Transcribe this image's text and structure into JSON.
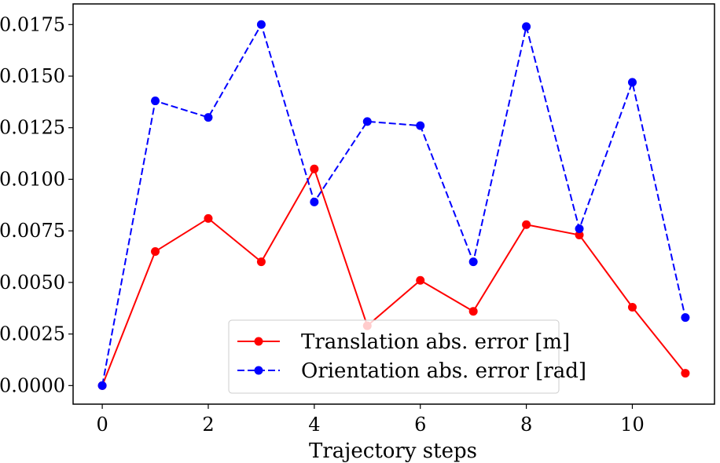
{
  "chart_data": {
    "type": "line",
    "title": "",
    "xlabel": "Trajectory steps",
    "ylabel": "",
    "xlim": [
      -0.55,
      11.55
    ],
    "ylim": [
      -0.0009,
      0.0185
    ],
    "xticks": [
      0,
      2,
      4,
      6,
      8,
      10
    ],
    "xtick_labels": [
      "0",
      "2",
      "4",
      "6",
      "8",
      "10"
    ],
    "yticks": [
      0.0,
      0.0025,
      0.005,
      0.0075,
      0.01,
      0.0125,
      0.015,
      0.0175
    ],
    "ytick_labels": [
      "0.0000",
      "0.0025",
      "0.0050",
      "0.0075",
      "0.0100",
      "0.0125",
      "0.0150",
      "0.0175"
    ],
    "grid": false,
    "legend_position": "bottom-center",
    "x": [
      0,
      1,
      2,
      3,
      4,
      5,
      6,
      7,
      8,
      9,
      10,
      11
    ],
    "series": [
      {
        "name": "Translation abs. error [m]",
        "color": "#ff0000",
        "linestyle": "solid",
        "marker": "circle",
        "values": [
          0.0,
          0.0065,
          0.0081,
          0.006,
          0.0105,
          0.0029,
          0.0051,
          0.0036,
          0.0078,
          0.0073,
          0.0038,
          0.0006
        ]
      },
      {
        "name": "Orientation abs. error [rad]",
        "color": "#0000ff",
        "linestyle": "dashed",
        "marker": "circle",
        "values": [
          0.0,
          0.0138,
          0.013,
          0.0175,
          0.0089,
          0.0128,
          0.0126,
          0.006,
          0.0174,
          0.0076,
          0.0147,
          0.0033
        ]
      }
    ]
  }
}
